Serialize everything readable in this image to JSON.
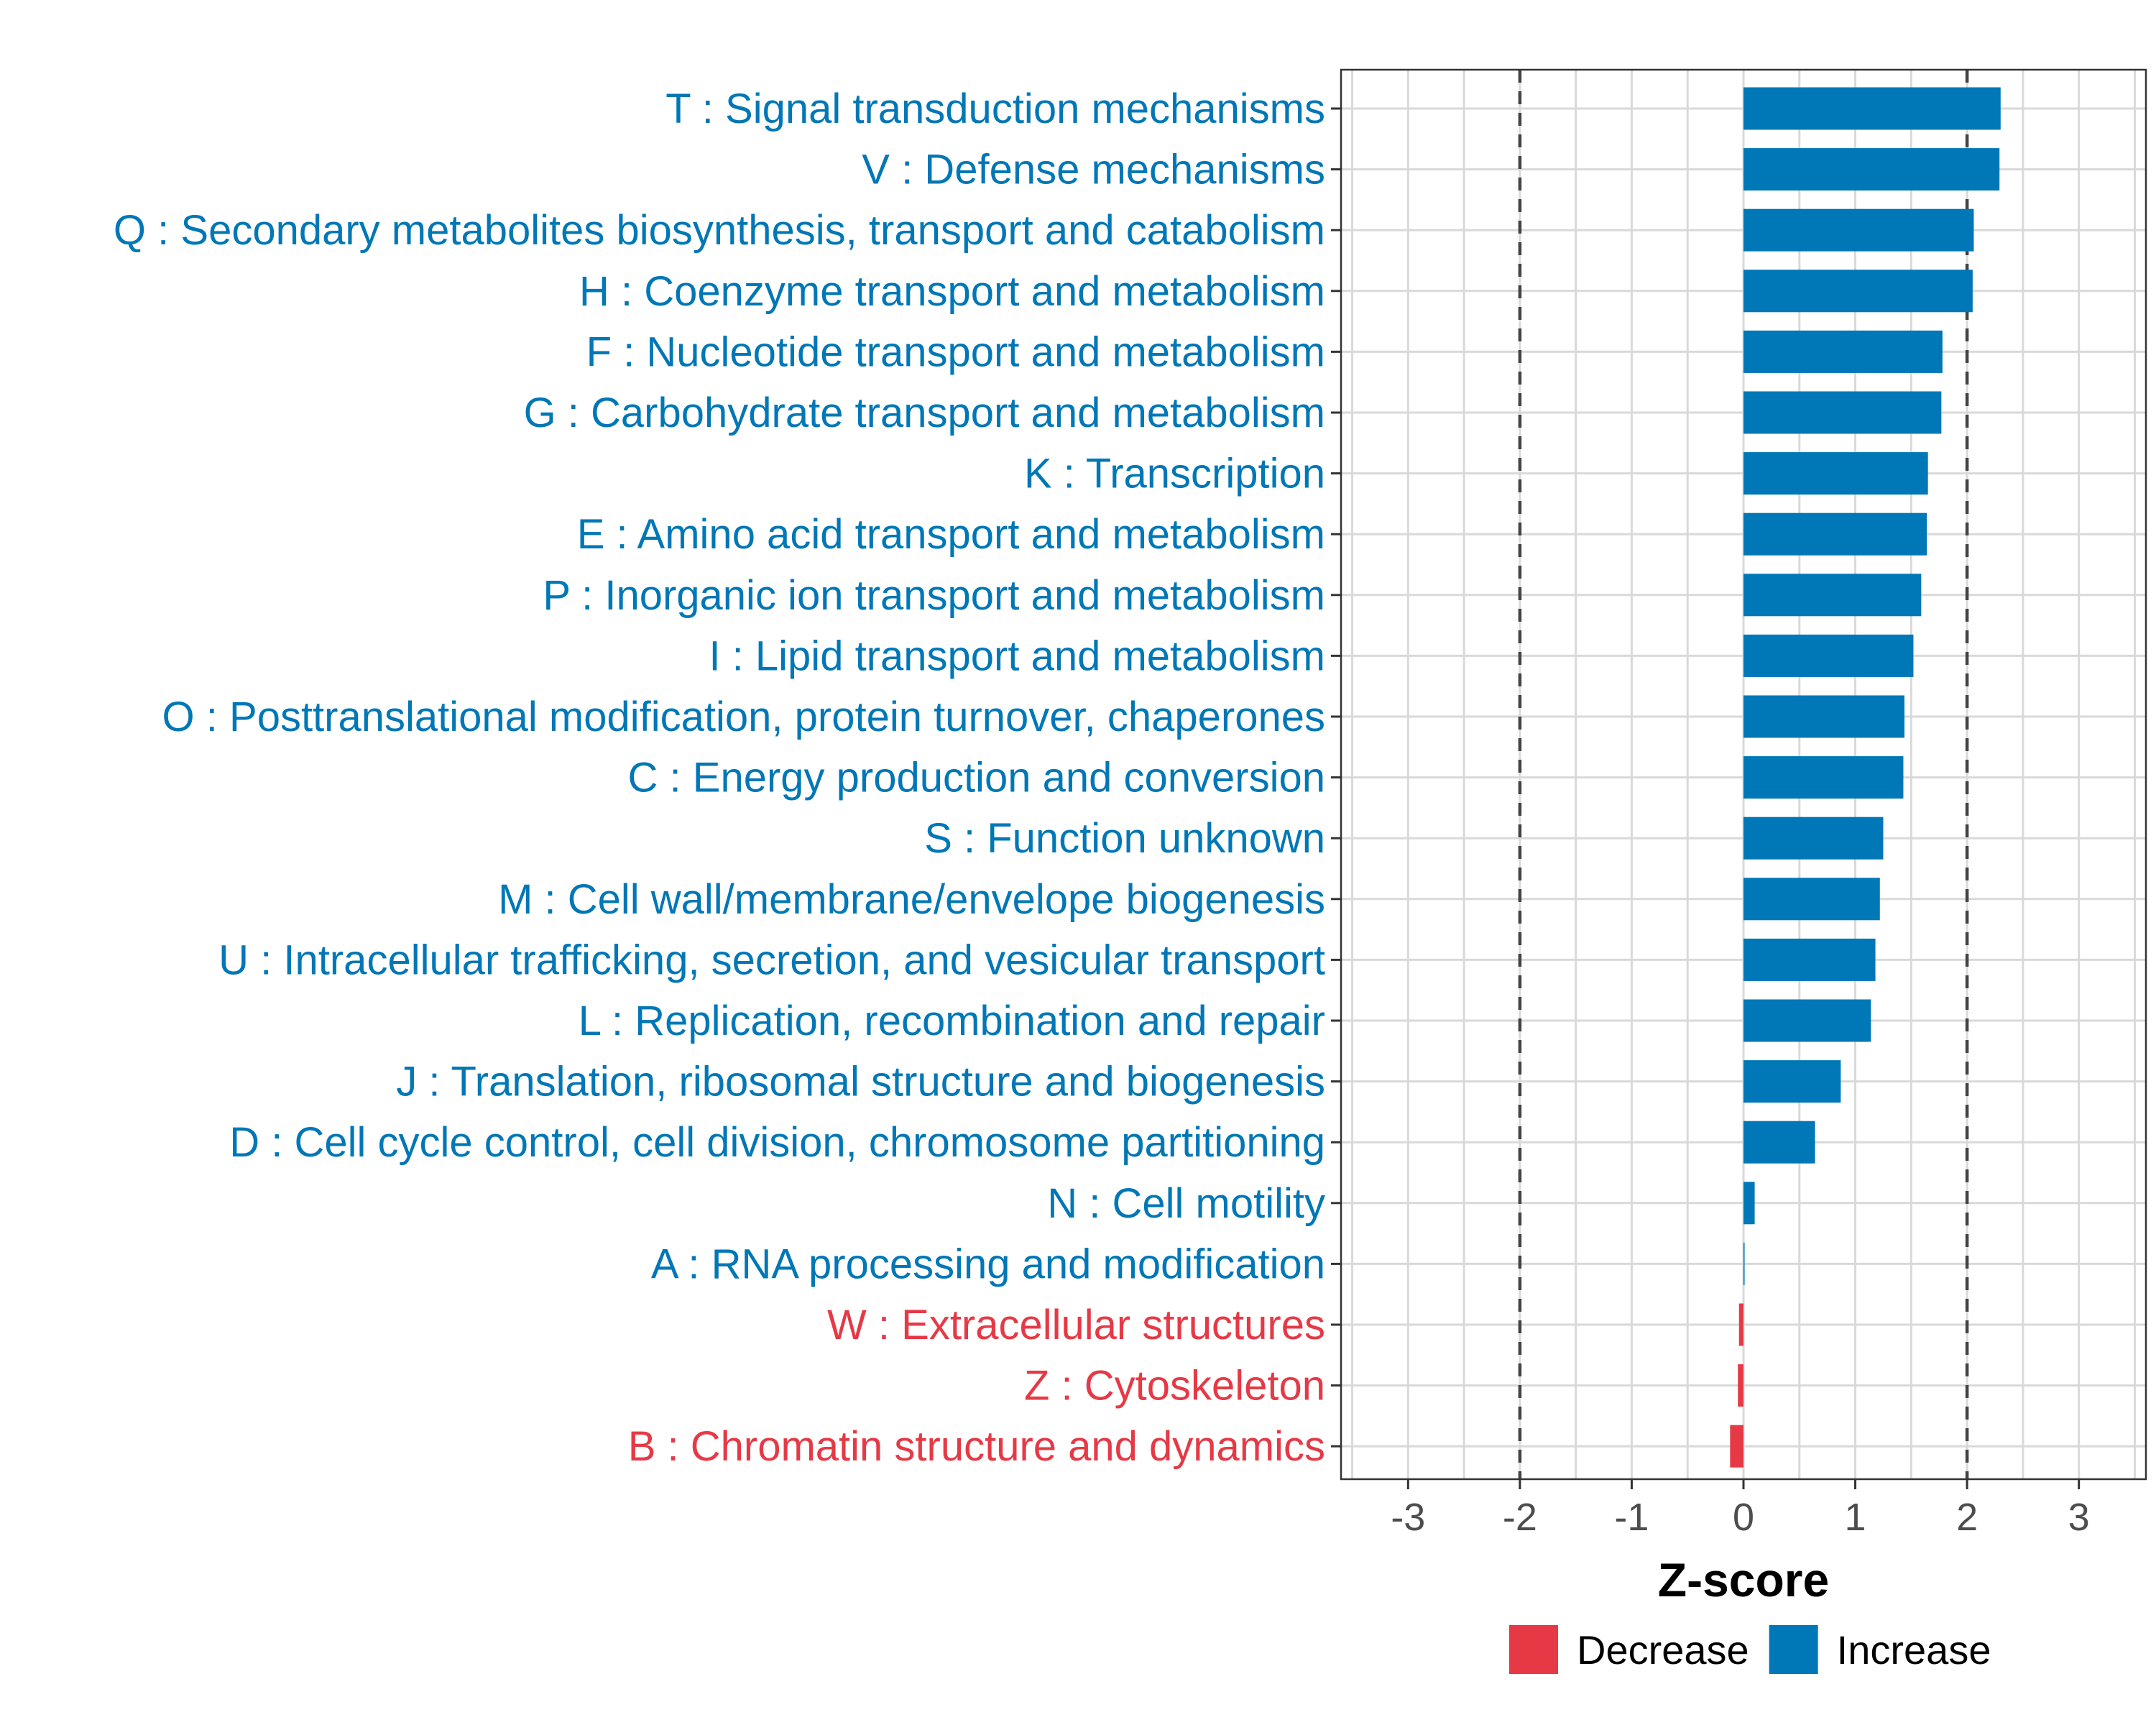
{
  "chart_data": {
    "type": "bar",
    "orientation": "horizontal",
    "title": "",
    "xlabel": "Z-score",
    "ylabel": "",
    "xlim": [
      -3.6,
      3.6
    ],
    "xticks": [
      -3,
      -2,
      -1,
      0,
      1,
      2,
      3
    ],
    "reference_lines": [
      -2,
      2
    ],
    "grid": true,
    "legend_position": "bottom",
    "colors": {
      "Decrease": "#e63946",
      "Increase": "#0077b6"
    },
    "legend": [
      {
        "label": "Decrease",
        "color": "#e63946"
      },
      {
        "label": "Increase",
        "color": "#0077b6"
      }
    ],
    "categories": [
      "T : Signal transduction mechanisms",
      "V : Defense mechanisms",
      "Q : Secondary metabolites biosynthesis, transport and catabolism",
      "H : Coenzyme transport and metabolism",
      "F : Nucleotide transport and metabolism",
      "G : Carbohydrate transport and metabolism",
      "K : Transcription",
      "E : Amino acid transport and metabolism",
      "P : Inorganic ion transport and metabolism",
      "I : Lipid transport and metabolism",
      "O : Posttranslational modification, protein turnover, chaperones",
      "C : Energy production and conversion",
      "S : Function unknown",
      "M : Cell wall/membrane/envelope biogenesis",
      "U : Intracellular trafficking, secretion, and vesicular transport",
      "L : Replication, recombination and repair",
      "J : Translation, ribosomal structure and biogenesis",
      "D : Cell cycle control, cell division, chromosome partitioning",
      "N : Cell motility",
      "A : RNA processing and modification",
      "W : Extracellular structures",
      "Z : Cytoskeleton",
      "B : Chromatin structure and dynamics"
    ],
    "values": [
      2.3,
      2.29,
      2.06,
      2.05,
      1.78,
      1.77,
      1.65,
      1.64,
      1.59,
      1.52,
      1.44,
      1.43,
      1.25,
      1.22,
      1.18,
      1.14,
      0.87,
      0.64,
      0.1,
      0.01,
      -0.04,
      -0.05,
      -0.12
    ],
    "direction": [
      "Increase",
      "Increase",
      "Increase",
      "Increase",
      "Increase",
      "Increase",
      "Increase",
      "Increase",
      "Increase",
      "Increase",
      "Increase",
      "Increase",
      "Increase",
      "Increase",
      "Increase",
      "Increase",
      "Increase",
      "Increase",
      "Increase",
      "Increase",
      "Decrease",
      "Decrease",
      "Decrease"
    ]
  }
}
